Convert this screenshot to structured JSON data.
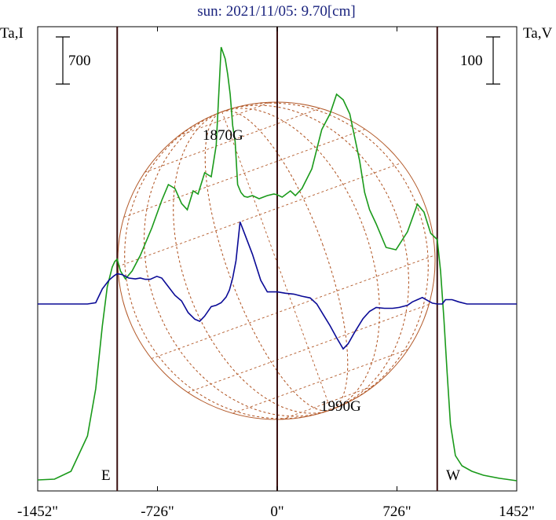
{
  "chart_data": {
    "type": "line",
    "title": "sun: 2021/11/05: 9.70[cm]",
    "ylabel_left": "Ta,I",
    "ylabel_right": "Ta,V",
    "scale_bar_left": "700",
    "scale_bar_right": "100",
    "xlim": [
      -1452,
      1452
    ],
    "x_ticks": [
      -1452,
      -726,
      0,
      726,
      1452
    ],
    "x_tick_labels": [
      "-1452\"",
      "-726\"",
      "0\"",
      "726\"",
      "1452\""
    ],
    "vlines": [
      -970,
      0,
      970
    ],
    "limb_labels": {
      "east": "E",
      "west": "W"
    },
    "annotations": [
      "1870G",
      "1990G"
    ],
    "colors": {
      "intensity": "#1a9a1a",
      "polarization": "#0a0a96",
      "sun_grid": "#b35a2a",
      "frame": "#000000",
      "vline": "#3a1010",
      "title": "#1a237e"
    },
    "series": [
      {
        "key": "intensity",
        "x": [
          -1452,
          -1350,
          -1250,
          -1150,
          -1100,
          -1060,
          -1030,
          -1000,
          -985,
          -970,
          -950,
          -920,
          -880,
          -830,
          -760,
          -700,
          -660,
          -620,
          -580,
          -545,
          -510,
          -480,
          -440,
          -400,
          -370,
          -340,
          -315,
          -300,
          -285,
          -270,
          -255,
          -240,
          -220,
          -200,
          -180,
          -150,
          -110,
          -60,
          -20,
          0,
          30,
          80,
          110,
          150,
          210,
          270,
          320,
          360,
          400,
          440,
          470,
          500,
          530,
          560,
          600,
          660,
          720,
          790,
          850,
          890,
          930,
          950,
          970,
          990,
          1010,
          1030,
          1050,
          1080,
          1120,
          1180,
          1250,
          1350,
          1452
        ],
        "y": [
          4,
          5,
          15,
          60,
          120,
          200,
          250,
          275,
          282,
          285,
          270,
          260,
          270,
          290,
          325,
          360,
          380,
          375,
          356,
          348,
          372,
          368,
          395,
          390,
          430,
          555,
          540,
          520,
          495,
          455,
          435,
          380,
          370,
          365,
          364,
          366,
          362,
          366,
          368,
          367,
          364,
          372,
          366,
          375,
          400,
          450,
          470,
          495,
          488,
          470,
          440,
          410,
          370,
          348,
          330,
          300,
          297,
          320,
          355,
          345,
          318,
          314,
          310,
          270,
          210,
          140,
          75,
          35,
          22,
          15,
          10,
          6,
          3
        ]
      },
      {
        "key": "polarization",
        "x": [
          -1452,
          -1250,
          -1200,
          -1150,
          -1100,
          -1060,
          -1020,
          -990,
          -970,
          -940,
          -900,
          -860,
          -830,
          -800,
          -770,
          -730,
          -700,
          -660,
          -620,
          -580,
          -540,
          -500,
          -470,
          -440,
          -400,
          -370,
          -340,
          -310,
          -290,
          -270,
          -250,
          -225,
          -200,
          -150,
          -100,
          -60,
          0,
          50,
          100,
          150,
          200,
          240,
          280,
          320,
          360,
          400,
          430,
          470,
          520,
          560,
          600,
          650,
          700,
          740,
          790,
          820,
          880,
          940,
          970,
          1000,
          1020,
          1060,
          1100,
          1150,
          1200,
          1300,
          1452
        ],
        "y": [
          0,
          0,
          0,
          0,
          3,
          35,
          55,
          65,
          70,
          68,
          60,
          58,
          60,
          57,
          57,
          64,
          60,
          40,
          20,
          7,
          -20,
          -35,
          -40,
          -28,
          -6,
          -3,
          3,
          16,
          32,
          60,
          100,
          190,
          165,
          115,
          55,
          28,
          28,
          25,
          23,
          18,
          14,
          0,
          -25,
          -50,
          -78,
          -104,
          -92,
          -65,
          -34,
          -17,
          -8,
          -10,
          -10,
          -8,
          -3,
          5,
          15,
          2,
          0,
          0,
          10,
          10,
          5,
          0,
          0,
          0,
          0
        ]
      }
    ]
  }
}
